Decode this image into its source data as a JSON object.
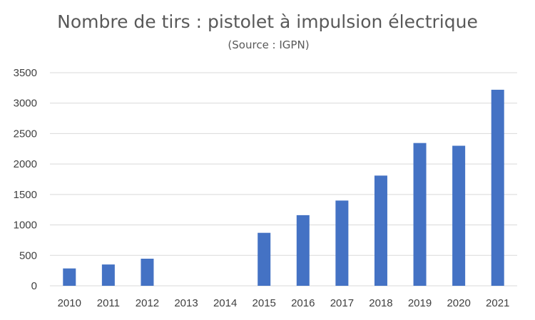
{
  "chart_data": {
    "type": "bar",
    "title": "Nombre de tirs : pistolet à impulsion électrique",
    "subtitle": "(Source : IGPN)",
    "xlabel": "",
    "ylabel": "",
    "categories": [
      "2010",
      "2011",
      "2012",
      "2013",
      "2014",
      "2015",
      "2016",
      "2017",
      "2018",
      "2019",
      "2020",
      "2021"
    ],
    "values": [
      285,
      350,
      445,
      0,
      0,
      870,
      1160,
      1400,
      1810,
      2345,
      2300,
      3220
    ],
    "ylim": [
      0,
      3500
    ],
    "yticks": [
      0,
      500,
      1000,
      1500,
      2000,
      2500,
      3000,
      3500
    ],
    "grid": true,
    "legend": "none",
    "colors": {
      "bar": "#4472C4",
      "grid": "#D9D9D9",
      "text": "#595959"
    }
  }
}
